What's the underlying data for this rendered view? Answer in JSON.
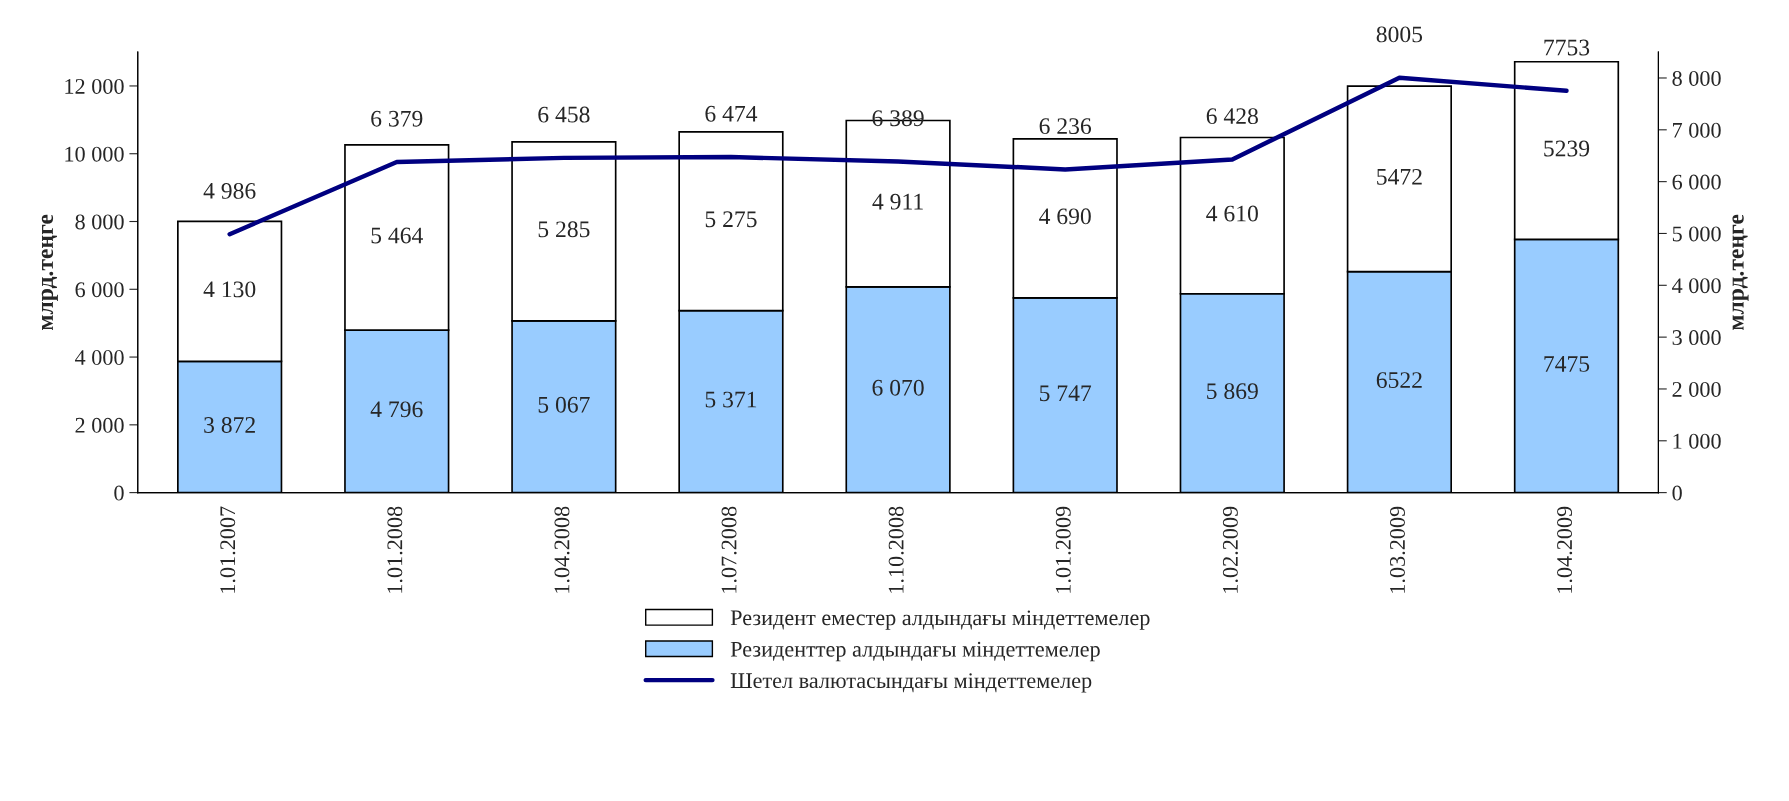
{
  "chart_data": {
    "type": "bar",
    "stacked": true,
    "ylabel": "млрд.теңге",
    "y2label": "млрд.теңге",
    "categories": [
      "1.01.2007",
      "1.01.2008",
      "1.04.2008",
      "1.07.2008",
      "1.10.2008",
      "1.01.2009",
      "1.02.2009",
      "1.03.2009",
      "1.04.2009"
    ],
    "series": [
      {
        "name": "Резиденттер алдындағы міндеттемелер",
        "color": "#99ccff",
        "values": [
          3872,
          4796,
          5067,
          5371,
          6070,
          5747,
          5869,
          6522,
          7475
        ],
        "value_labels": [
          "3 872",
          "4 796",
          "5 067",
          "5 371",
          "6 070",
          "5 747",
          "5 869",
          "6522",
          "7475"
        ]
      },
      {
        "name": "Резидент еместер алдындағы міндеттемелер",
        "color": "#ffffff",
        "values": [
          4130,
          5464,
          5285,
          5275,
          4911,
          4690,
          4610,
          5472,
          5239
        ],
        "value_labels": [
          "4 130",
          "5 464",
          "5 285",
          "5 275",
          "4 911",
          "4 690",
          "4 610",
          "5472",
          "5239"
        ]
      },
      {
        "name": "Шетел валютасындағы міндеттемелер",
        "type": "line",
        "axis": "y2",
        "color": "#000080",
        "values": [
          4986,
          6379,
          6458,
          6474,
          6389,
          6236,
          6428,
          8005,
          7753
        ],
        "value_labels": [
          "4 986",
          "6 379",
          "6 458",
          "6 474",
          "6 389",
          "6 236",
          "6 428",
          "8005",
          "7753"
        ]
      }
    ],
    "ylim": [
      0,
      13000
    ],
    "yticks": [
      {
        "value": 0,
        "label": "0"
      },
      {
        "value": 2000,
        "label": "2 000"
      },
      {
        "value": 4000,
        "label": "4 000"
      },
      {
        "value": 6000,
        "label": "6 000"
      },
      {
        "value": 8000,
        "label": "8 000"
      },
      {
        "value": 10000,
        "label": "10 000"
      },
      {
        "value": 12000,
        "label": "12 000"
      }
    ],
    "y2lim": [
      0,
      8500
    ],
    "y2ticks": [
      {
        "value": 0,
        "label": "0"
      },
      {
        "value": 1000,
        "label": "1 000"
      },
      {
        "value": 2000,
        "label": "2 000"
      },
      {
        "value": 3000,
        "label": "3 000"
      },
      {
        "value": 4000,
        "label": "4 000"
      },
      {
        "value": 5000,
        "label": "5 000"
      },
      {
        "value": 6000,
        "label": "6 000"
      },
      {
        "value": 7000,
        "label": "7 000"
      },
      {
        "value": 8000,
        "label": "8 000"
      }
    ],
    "legend": "bottom",
    "grid": false,
    "marker": "none",
    "line_style": "solid"
  }
}
